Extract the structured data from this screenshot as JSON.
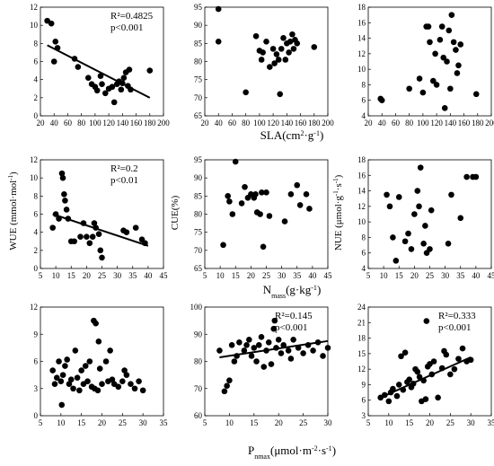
{
  "figure": {
    "x_labels": {
      "row1": "SLA(cm²·g⁻¹)",
      "row2": "Nmass(g·kg⁻¹)",
      "row3": "Pnmax(μmol·m⁻²·s⁻¹)"
    },
    "y_labels": {
      "col1": "WUE (mmol·mol⁻¹)",
      "col2": "CUE(%)",
      "col3": "NUE (μmol·g⁻¹·s⁻¹)"
    }
  },
  "chart_data": [
    {
      "type": "scatter",
      "row": 0,
      "col": 0,
      "xlim": [
        20,
        200
      ],
      "ylim": [
        0,
        12
      ],
      "xticks": [
        20,
        40,
        60,
        80,
        100,
        120,
        140,
        160,
        180,
        200
      ],
      "yticks": [
        0,
        2,
        4,
        6,
        8,
        10,
        12
      ],
      "points": [
        [
          30,
          10.5
        ],
        [
          36,
          10.2
        ],
        [
          40,
          6.0
        ],
        [
          42,
          8.2
        ],
        [
          45,
          7.5
        ],
        [
          70,
          6.3
        ],
        [
          75,
          5.4
        ],
        [
          90,
          4.2
        ],
        [
          95,
          3.5
        ],
        [
          100,
          3.2
        ],
        [
          103,
          2.8
        ],
        [
          108,
          4.4
        ],
        [
          110,
          3.5
        ],
        [
          115,
          2.5
        ],
        [
          120,
          3.0
        ],
        [
          125,
          3.2
        ],
        [
          128,
          1.5
        ],
        [
          132,
          3.5
        ],
        [
          135,
          3.8
        ],
        [
          138,
          2.9
        ],
        [
          140,
          3.6
        ],
        [
          142,
          4.2
        ],
        [
          145,
          4.8
        ],
        [
          148,
          3.3
        ],
        [
          150,
          5.1
        ],
        [
          152,
          2.9
        ],
        [
          180,
          5.0
        ]
      ],
      "fit": {
        "x": [
          30,
          180
        ],
        "y": [
          7.8,
          2.0
        ]
      },
      "annotations": [
        "R²=0.4825",
        "p<0.001"
      ]
    },
    {
      "type": "scatter",
      "row": 0,
      "col": 1,
      "xlim": [
        20,
        200
      ],
      "ylim": [
        65,
        95
      ],
      "xticks": [
        20,
        40,
        60,
        80,
        100,
        120,
        140,
        160,
        180,
        200
      ],
      "yticks": [
        65,
        70,
        75,
        80,
        85,
        90,
        95
      ],
      "points": [
        [
          40,
          94.5
        ],
        [
          40,
          85.5
        ],
        [
          80,
          71.5
        ],
        [
          95,
          87.0
        ],
        [
          100,
          83.0
        ],
        [
          103,
          80.5
        ],
        [
          105,
          82.5
        ],
        [
          110,
          85.5
        ],
        [
          115,
          78.5
        ],
        [
          120,
          83.5
        ],
        [
          122,
          79.5
        ],
        [
          125,
          82.0
        ],
        [
          128,
          80.5
        ],
        [
          130,
          71.0
        ],
        [
          132,
          83.5
        ],
        [
          135,
          86.5
        ],
        [
          138,
          80.5
        ],
        [
          140,
          85.0
        ],
        [
          143,
          82.5
        ],
        [
          145,
          85.5
        ],
        [
          148,
          87.5
        ],
        [
          150,
          83.5
        ],
        [
          152,
          86.0
        ],
        [
          155,
          85.0
        ],
        [
          180,
          84.0
        ]
      ]
    },
    {
      "type": "scatter",
      "row": 0,
      "col": 2,
      "xlim": [
        20,
        200
      ],
      "ylim": [
        4,
        18
      ],
      "xticks": [
        20,
        40,
        60,
        80,
        100,
        120,
        140,
        160,
        180,
        200
      ],
      "yticks": [
        4,
        6,
        8,
        10,
        12,
        14,
        16,
        18
      ],
      "points": [
        [
          38,
          6.2
        ],
        [
          40,
          6.0
        ],
        [
          80,
          7.5
        ],
        [
          95,
          8.8
        ],
        [
          100,
          7.0
        ],
        [
          105,
          15.5
        ],
        [
          108,
          15.5
        ],
        [
          110,
          13.5
        ],
        [
          115,
          8.5
        ],
        [
          118,
          12.0
        ],
        [
          120,
          8.0
        ],
        [
          125,
          13.8
        ],
        [
          128,
          15.5
        ],
        [
          130,
          11.5
        ],
        [
          132,
          5.0
        ],
        [
          135,
          11.0
        ],
        [
          138,
          15.0
        ],
        [
          140,
          7.5
        ],
        [
          142,
          17.0
        ],
        [
          145,
          13.5
        ],
        [
          148,
          12.5
        ],
        [
          150,
          9.5
        ],
        [
          152,
          10.5
        ],
        [
          155,
          13.2
        ],
        [
          178,
          6.8
        ]
      ]
    },
    {
      "type": "scatter",
      "row": 1,
      "col": 0,
      "xlim": [
        5,
        45
      ],
      "ylim": [
        0,
        12
      ],
      "xticks": [
        5,
        10,
        15,
        20,
        25,
        30,
        35,
        40,
        45
      ],
      "yticks": [
        0,
        2,
        4,
        6,
        8,
        10,
        12
      ],
      "points": [
        [
          9,
          4.5
        ],
        [
          10,
          6.0
        ],
        [
          11,
          5.5
        ],
        [
          12,
          10.5
        ],
        [
          12.3,
          10.0
        ],
        [
          12.7,
          8.2
        ],
        [
          13,
          7.5
        ],
        [
          13.5,
          6.5
        ],
        [
          14,
          5.5
        ],
        [
          15,
          3.0
        ],
        [
          16,
          3.0
        ],
        [
          18,
          3.5
        ],
        [
          19,
          5.0
        ],
        [
          20,
          3.5
        ],
        [
          21,
          2.8
        ],
        [
          22,
          3.5
        ],
        [
          22.5,
          5.0
        ],
        [
          23,
          4.5
        ],
        [
          24,
          3.8
        ],
        [
          24.5,
          2.0
        ],
        [
          25,
          1.2
        ],
        [
          32,
          4.2
        ],
        [
          33,
          4.0
        ],
        [
          36,
          4.5
        ],
        [
          38,
          3.2
        ],
        [
          39,
          2.8
        ]
      ],
      "fit": {
        "x": [
          9,
          40
        ],
        "y": [
          6.0,
          2.5
        ]
      },
      "annotations": [
        "R²=0.2",
        "p<0.01"
      ]
    },
    {
      "type": "scatter",
      "row": 1,
      "col": 1,
      "xlim": [
        5,
        45
      ],
      "ylim": [
        65,
        95
      ],
      "xticks": [
        5,
        10,
        15,
        20,
        25,
        30,
        35,
        40,
        45
      ],
      "yticks": [
        65,
        70,
        75,
        80,
        85,
        90,
        95
      ],
      "points": [
        [
          11,
          71.5
        ],
        [
          12.5,
          85.0
        ],
        [
          13,
          83.5
        ],
        [
          14,
          80.0
        ],
        [
          15,
          94.5
        ],
        [
          17,
          83.0
        ],
        [
          18,
          87.5
        ],
        [
          19,
          84.5
        ],
        [
          20,
          85.5
        ],
        [
          21,
          84.5
        ],
        [
          21.5,
          85.5
        ],
        [
          22,
          80.5
        ],
        [
          23,
          80.0
        ],
        [
          23.5,
          86.0
        ],
        [
          24,
          71.0
        ],
        [
          25,
          86.0
        ],
        [
          26,
          79.5
        ],
        [
          31,
          78.0
        ],
        [
          33,
          85.5
        ],
        [
          35,
          88.0
        ],
        [
          36,
          82.5
        ],
        [
          38,
          85.5
        ],
        [
          39,
          81.5
        ]
      ]
    },
    {
      "type": "scatter",
      "row": 1,
      "col": 2,
      "xlim": [
        5,
        45
      ],
      "ylim": [
        4,
        18
      ],
      "xticks": [
        5,
        10,
        15,
        20,
        25,
        30,
        35,
        40,
        45
      ],
      "yticks": [
        4,
        6,
        8,
        10,
        12,
        14,
        16,
        18
      ],
      "points": [
        [
          11,
          13.5
        ],
        [
          12,
          12.0
        ],
        [
          13,
          8.0
        ],
        [
          14,
          5.0
        ],
        [
          15,
          13.2
        ],
        [
          17,
          7.5
        ],
        [
          18,
          8.5
        ],
        [
          19,
          6.5
        ],
        [
          20,
          11.0
        ],
        [
          21,
          14.0
        ],
        [
          21.5,
          12.0
        ],
        [
          22,
          17.0
        ],
        [
          23,
          7.2
        ],
        [
          23.5,
          9.5
        ],
        [
          24,
          6.0
        ],
        [
          25,
          6.5
        ],
        [
          25.5,
          11.5
        ],
        [
          31,
          7.2
        ],
        [
          32,
          13.5
        ],
        [
          35,
          10.5
        ],
        [
          37,
          15.8
        ],
        [
          39,
          15.8
        ],
        [
          40,
          15.8
        ]
      ]
    },
    {
      "type": "scatter",
      "row": 2,
      "col": 0,
      "xlim": [
        5,
        35
      ],
      "ylim": [
        0,
        12
      ],
      "xticks": [
        5,
        10,
        15,
        20,
        25,
        30,
        35
      ],
      "yticks": [
        0,
        3,
        6,
        9,
        12
      ],
      "points": [
        [
          8,
          5.0
        ],
        [
          8.5,
          3.5
        ],
        [
          9,
          4.2
        ],
        [
          9.5,
          6.0
        ],
        [
          10,
          3.8
        ],
        [
          10.2,
          1.2
        ],
        [
          10.5,
          4.5
        ],
        [
          11,
          5.5
        ],
        [
          11.5,
          6.2
        ],
        [
          12,
          3.5
        ],
        [
          12.5,
          4.0
        ],
        [
          13,
          3.0
        ],
        [
          13.5,
          7.2
        ],
        [
          14,
          4.2
        ],
        [
          14.5,
          2.8
        ],
        [
          15,
          5.0
        ],
        [
          15.5,
          3.5
        ],
        [
          16,
          5.5
        ],
        [
          16.5,
          3.8
        ],
        [
          17,
          6.0
        ],
        [
          17.5,
          3.2
        ],
        [
          18,
          10.5
        ],
        [
          18.2,
          3.0
        ],
        [
          18.5,
          10.2
        ],
        [
          19,
          2.8
        ],
        [
          19.2,
          8.2
        ],
        [
          19.5,
          5.2
        ],
        [
          20,
          3.5
        ],
        [
          21,
          6.0
        ],
        [
          21.5,
          3.8
        ],
        [
          22,
          7.2
        ],
        [
          22.5,
          4.0
        ],
        [
          23,
          3.5
        ],
        [
          24,
          3.2
        ],
        [
          25,
          3.8
        ],
        [
          25.5,
          5.0
        ],
        [
          26,
          4.5
        ],
        [
          27,
          3.5
        ],
        [
          28,
          3.0
        ],
        [
          29,
          3.8
        ],
        [
          30,
          2.8
        ]
      ]
    },
    {
      "type": "scatter",
      "row": 2,
      "col": 1,
      "xlim": [
        5,
        30
      ],
      "ylim": [
        60,
        100
      ],
      "xticks": [
        5,
        10,
        15,
        20,
        25,
        30
      ],
      "yticks": [
        60,
        70,
        80,
        90,
        100
      ],
      "points": [
        [
          8,
          84.0
        ],
        [
          9,
          69.0
        ],
        [
          9.5,
          71.0
        ],
        [
          10,
          73.0
        ],
        [
          10.5,
          86.0
        ],
        [
          11,
          80.0
        ],
        [
          11.5,
          82.0
        ],
        [
          12,
          87.0
        ],
        [
          13,
          84.0
        ],
        [
          13.5,
          86.0
        ],
        [
          14,
          88.0
        ],
        [
          14.5,
          82.0
        ],
        [
          15,
          85.0
        ],
        [
          15.5,
          80.0
        ],
        [
          16,
          86.0
        ],
        [
          16.5,
          89.0
        ],
        [
          17,
          78.0
        ],
        [
          17.5,
          84.0
        ],
        [
          18,
          87.0
        ],
        [
          18.5,
          79.0
        ],
        [
          19,
          92.0
        ],
        [
          19.2,
          95.0
        ],
        [
          19.5,
          85.0
        ],
        [
          20,
          88.0
        ],
        [
          20.5,
          83.0
        ],
        [
          21,
          86.0
        ],
        [
          22,
          84.0
        ],
        [
          22.5,
          81.0
        ],
        [
          23,
          88.0
        ],
        [
          24,
          85.0
        ],
        [
          25,
          83.0
        ],
        [
          26,
          86.0
        ],
        [
          27,
          84.0
        ],
        [
          28,
          87.0
        ],
        [
          29,
          82.0
        ],
        [
          30,
          85.0
        ]
      ],
      "fit": {
        "x": [
          8,
          30
        ],
        "y": [
          81.5,
          87.5
        ]
      },
      "annotations": [
        "R²=0.145",
        "p<0.001"
      ]
    },
    {
      "type": "scatter",
      "row": 2,
      "col": 2,
      "xlim": [
        5,
        35
      ],
      "ylim": [
        3,
        24
      ],
      "xticks": [
        5,
        10,
        15,
        20,
        25,
        30,
        35
      ],
      "yticks": [
        3,
        6,
        9,
        12,
        15,
        18,
        21,
        24
      ],
      "points": [
        [
          8,
          6.5
        ],
        [
          9,
          7.0
        ],
        [
          10,
          5.8
        ],
        [
          10.5,
          7.5
        ],
        [
          11,
          8.2
        ],
        [
          12,
          6.8
        ],
        [
          12.5,
          9.0
        ],
        [
          13,
          14.5
        ],
        [
          13.5,
          8.0
        ],
        [
          14,
          15.2
        ],
        [
          14.5,
          9.5
        ],
        [
          15,
          10.0
        ],
        [
          15.5,
          8.5
        ],
        [
          16,
          9.2
        ],
        [
          16.5,
          12.0
        ],
        [
          17,
          11.5
        ],
        [
          17.5,
          10.5
        ],
        [
          18,
          5.8
        ],
        [
          18.5,
          9.8
        ],
        [
          19,
          6.2
        ],
        [
          19.2,
          21.3
        ],
        [
          19.5,
          12.5
        ],
        [
          20,
          13.0
        ],
        [
          20.5,
          11.0
        ],
        [
          21,
          13.5
        ],
        [
          22,
          6.5
        ],
        [
          23,
          12.2
        ],
        [
          23.5,
          15.5
        ],
        [
          24,
          14.8
        ],
        [
          25,
          11.0
        ],
        [
          26,
          12.0
        ],
        [
          27,
          14.0
        ],
        [
          28,
          16.0
        ],
        [
          29,
          13.5
        ],
        [
          30,
          13.8
        ]
      ],
      "fit": {
        "x": [
          8,
          30
        ],
        "y": [
          6.5,
          14.3
        ]
      },
      "annotations": [
        "R²=0.333",
        "p<0.001"
      ]
    }
  ]
}
